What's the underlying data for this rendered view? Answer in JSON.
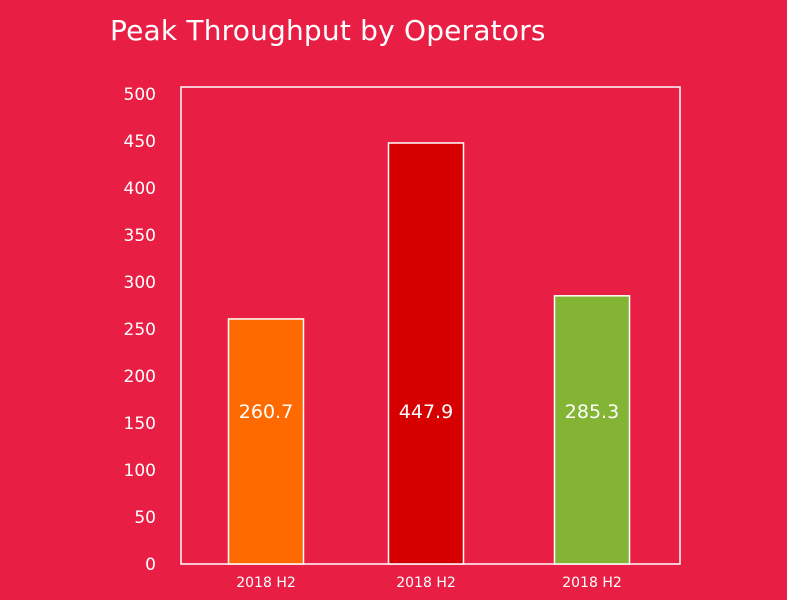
{
  "chart_data": {
    "type": "bar",
    "title": "Peak Throughput by Operators",
    "categories": [
      "2018 H2",
      "2018 H2",
      "2018 H2"
    ],
    "values": [
      260.7,
      447.9,
      285.3
    ],
    "value_labels": [
      "260.7",
      "447.9",
      "285.3"
    ],
    "bar_colors": [
      "#ff6a00",
      "#d60000",
      "#83b433"
    ],
    "ylim": [
      0,
      500
    ],
    "yticks": [
      "0",
      "50",
      "100",
      "150",
      "200",
      "250",
      "300",
      "350",
      "400",
      "450",
      "500"
    ],
    "xlabel": "",
    "ylabel": "",
    "grid": false,
    "legend": "none"
  },
  "colors": {
    "background": "#e91e45",
    "frame": "#ffffff",
    "text": "#ffffff"
  }
}
